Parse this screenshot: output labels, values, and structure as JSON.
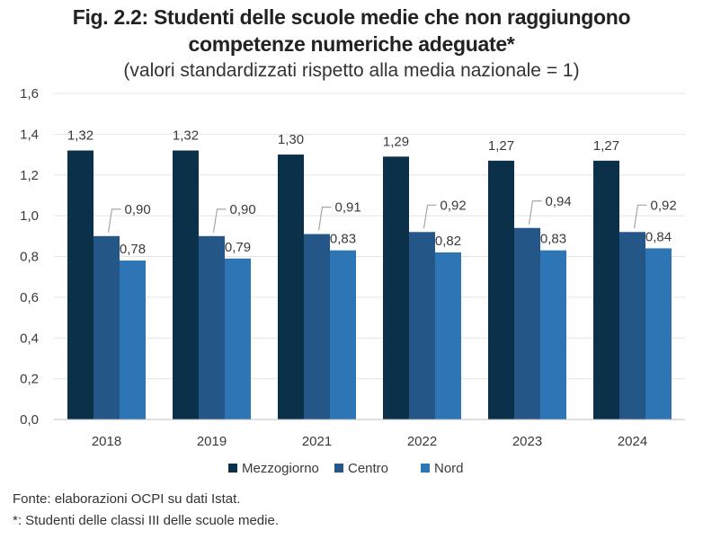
{
  "title_line1": "Fig. 2.2: Studenti delle scuole medie che non raggiungono",
  "title_line2": "competenze numeriche adeguate*",
  "subtitle": "(valori standardizzati rispetto alla media nazionale = 1)",
  "source_note": "Fonte: elaborazioni OCPI su dati Istat.",
  "footnote": "*: Studenti delle classi III delle scuole medie.",
  "chart_data": {
    "type": "bar",
    "title": "Fig. 2.2: Studenti delle scuole medie che non raggiungono competenze numeriche adeguate*",
    "subtitle": "(valori standardizzati rispetto alla media nazionale = 1)",
    "categories": [
      "2018",
      "2019",
      "2021",
      "2022",
      "2023",
      "2024"
    ],
    "series": [
      {
        "name": "Mezzogiorno",
        "color": "#0b3049",
        "values": [
          1.32,
          1.32,
          1.3,
          1.29,
          1.27,
          1.27
        ],
        "labels": [
          "1,32",
          "1,32",
          "1,30",
          "1,29",
          "1,27",
          "1,27"
        ]
      },
      {
        "name": "Centro",
        "color": "#245788",
        "values": [
          0.9,
          0.9,
          0.91,
          0.92,
          0.94,
          0.92
        ],
        "labels": [
          "0,90",
          "0,90",
          "0,91",
          "0,92",
          "0,94",
          "0,92"
        ]
      },
      {
        "name": "Nord",
        "color": "#2e75b6",
        "values": [
          0.78,
          0.79,
          0.83,
          0.82,
          0.83,
          0.84
        ],
        "labels": [
          "0,78",
          "0,79",
          "0,83",
          "0,82",
          "0,83",
          "0,84"
        ]
      }
    ],
    "xlabel": "",
    "ylabel": "",
    "ylim": [
      0,
      1.6
    ],
    "yticks": [
      0,
      0.2,
      0.4,
      0.6,
      0.8,
      1.0,
      1.2,
      1.4,
      1.6
    ],
    "ytick_labels": [
      "0,0",
      "0,2",
      "0,4",
      "0,6",
      "0,8",
      "1,0",
      "1,2",
      "1,4",
      "1,6"
    ],
    "grid": true,
    "grid_color": "#e4e4e4",
    "legend_position": "bottom-center",
    "background": "#ffffff"
  }
}
